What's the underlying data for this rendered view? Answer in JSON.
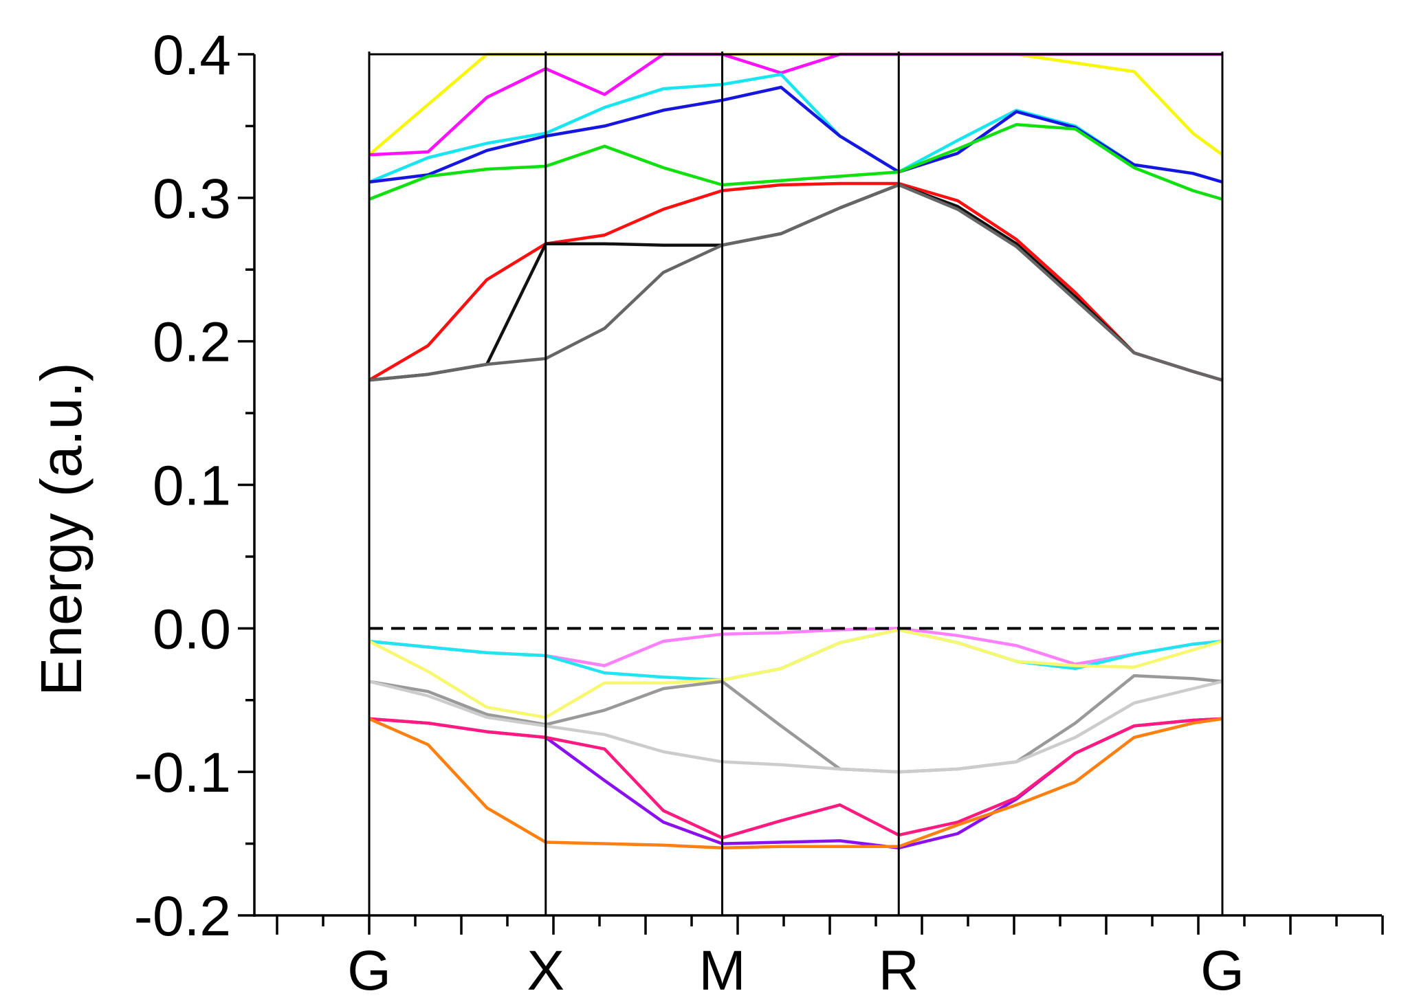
{
  "chart_data": {
    "type": "line",
    "title": "",
    "xlabel": "",
    "ylabel": "Energy (a.u.)",
    "ylim": [
      -0.2,
      0.4
    ],
    "yticks": [
      "0.4",
      "0.3",
      "0.2",
      "0.1",
      "0.0",
      "-0.1",
      "-0.2"
    ],
    "ytick_values": [
      0.4,
      0.3,
      0.2,
      0.1,
      0.0,
      -0.1,
      -0.2
    ],
    "k_points": [
      {
        "label": "G",
        "x": 0
      },
      {
        "label": "X",
        "x": 6
      },
      {
        "label": "M",
        "x": 12
      },
      {
        "label": "R",
        "x": 18
      },
      {
        "label": "G",
        "x": 29
      }
    ],
    "fermi_level": 0.0,
    "x": [
      0,
      2,
      4,
      6,
      8,
      10,
      12,
      14,
      16,
      18,
      20,
      22,
      24,
      26,
      28,
      29
    ],
    "series": [
      {
        "color": "#f7f70a",
        "values": [
          0.33,
          0.365,
          0.4,
          0.4,
          0.4,
          0.4,
          0.4,
          0.4,
          0.4,
          0.4,
          0.4,
          0.4,
          0.394,
          0.388,
          0.345,
          0.33
        ]
      },
      {
        "color": "#ff10ff",
        "values": [
          0.33,
          0.332,
          0.37,
          0.39,
          0.372,
          0.4,
          0.4,
          0.387,
          0.4,
          0.4,
          0.4,
          0.4,
          0.4,
          0.4,
          0.4,
          0.4
        ]
      },
      {
        "color": "#17e5f0",
        "values": [
          0.311,
          0.328,
          0.338,
          0.345,
          0.363,
          0.376,
          0.379,
          0.386,
          0.343,
          0.318,
          0.34,
          0.361,
          0.35,
          0.323,
          0.317,
          0.311
        ]
      },
      {
        "color": "#1616e0",
        "values": [
          0.311,
          0.316,
          0.333,
          0.343,
          0.35,
          0.361,
          0.368,
          0.377,
          0.343,
          0.318,
          0.331,
          0.36,
          0.349,
          0.323,
          0.317,
          0.311
        ]
      },
      {
        "color": "#10e010",
        "values": [
          0.299,
          0.315,
          0.32,
          0.322,
          0.336,
          0.321,
          0.309,
          0.312,
          0.315,
          0.318,
          0.334,
          0.351,
          0.348,
          0.321,
          0.305,
          0.299
        ]
      },
      {
        "color": "#ff1010",
        "values": [
          0.173,
          0.197,
          0.243,
          0.268,
          0.274,
          0.292,
          0.305,
          0.309,
          0.31,
          0.31,
          0.298,
          0.271,
          0.234,
          0.192,
          0.179,
          0.173
        ]
      },
      {
        "color": "#111111",
        "values": [
          0.173,
          0.177,
          0.184,
          0.268,
          0.268,
          0.267,
          0.267,
          0.275,
          0.293,
          0.309,
          0.294,
          0.268,
          0.231,
          0.192,
          0.179,
          0.173
        ]
      },
      {
        "color": "#666666",
        "values": [
          0.173,
          0.177,
          0.184,
          0.188,
          0.209,
          0.248,
          0.267,
          0.275,
          0.293,
          0.309,
          0.292,
          0.266,
          0.229,
          0.192,
          0.179,
          0.173
        ]
      },
      {
        "color": "#ff80ff",
        "values": [
          -0.009,
          -0.013,
          -0.017,
          -0.019,
          -0.026,
          -0.009,
          -0.004,
          -0.003,
          -0.001,
          0.0,
          -0.005,
          -0.012,
          -0.025,
          -0.018,
          -0.011,
          -0.009
        ]
      },
      {
        "color": "#20e5f0",
        "values": [
          -0.009,
          -0.013,
          -0.017,
          -0.019,
          -0.031,
          -0.034,
          -0.036,
          -0.028,
          -0.01,
          -0.001,
          -0.01,
          -0.023,
          -0.028,
          -0.018,
          -0.011,
          -0.009
        ]
      },
      {
        "color": "#f8f870",
        "values": [
          -0.009,
          -0.03,
          -0.055,
          -0.062,
          -0.038,
          -0.038,
          -0.036,
          -0.028,
          -0.01,
          -0.001,
          -0.01,
          -0.023,
          -0.026,
          -0.027,
          -0.015,
          -0.009
        ]
      },
      {
        "color": "#999999",
        "values": [
          -0.037,
          -0.044,
          -0.06,
          -0.067,
          -0.057,
          -0.042,
          -0.037,
          -0.068,
          -0.098,
          -0.1,
          -0.098,
          -0.093,
          -0.066,
          -0.033,
          -0.035,
          -0.037
        ]
      },
      {
        "color": "#cccccc",
        "values": [
          -0.037,
          -0.047,
          -0.062,
          -0.068,
          -0.074,
          -0.086,
          -0.093,
          -0.095,
          -0.098,
          -0.1,
          -0.098,
          -0.093,
          -0.076,
          -0.052,
          -0.042,
          -0.037
        ]
      },
      {
        "color": "#8a10f0",
        "values": [
          -0.063,
          -0.066,
          -0.072,
          -0.076,
          -0.106,
          -0.135,
          -0.15,
          -0.149,
          -0.148,
          -0.153,
          -0.143,
          -0.119,
          -0.087,
          -0.068,
          -0.064,
          -0.063
        ]
      },
      {
        "color": "#ff1a80",
        "values": [
          -0.063,
          -0.066,
          -0.072,
          -0.076,
          -0.084,
          -0.127,
          -0.146,
          -0.134,
          -0.123,
          -0.144,
          -0.135,
          -0.118,
          -0.087,
          -0.068,
          -0.064,
          -0.063
        ]
      },
      {
        "color": "#ff8010",
        "values": [
          -0.063,
          -0.081,
          -0.125,
          -0.149,
          -0.15,
          -0.151,
          -0.153,
          -0.152,
          -0.152,
          -0.152,
          -0.137,
          -0.123,
          -0.107,
          -0.076,
          -0.066,
          -0.063
        ]
      }
    ],
    "grid": false,
    "legend": "none"
  }
}
